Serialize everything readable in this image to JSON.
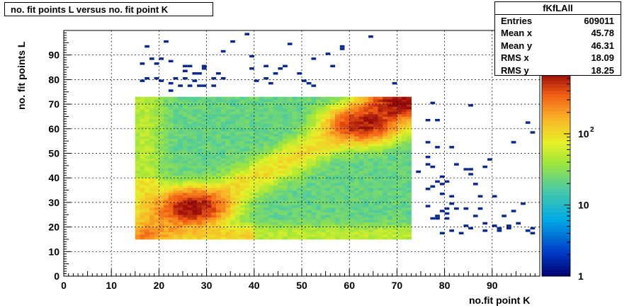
{
  "title": "no. fit points L versus no. fit point K",
  "stats": {
    "name": "fKfLAll",
    "rows": [
      {
        "label": "Entries",
        "value": "609011"
      },
      {
        "label": "Mean x",
        "value": "45.78"
      },
      {
        "label": "Mean y",
        "value": "46.31"
      },
      {
        "label": "RMS x",
        "value": "18.09"
      },
      {
        "label": "RMS y",
        "value": "18.25"
      }
    ]
  },
  "chart_data": {
    "type": "heatmap",
    "xlabel": "no.fit point K",
    "ylabel": "no. fit points L",
    "xlim": [
      0,
      100
    ],
    "ylim": [
      0,
      100
    ],
    "xticks": [
      0,
      10,
      20,
      30,
      40,
      50,
      60,
      70,
      80,
      90
    ],
    "yticks": [
      0,
      10,
      20,
      30,
      40,
      50,
      60,
      70,
      80,
      90
    ],
    "grid": true,
    "zscale": "log",
    "zlim": [
      1,
      700
    ],
    "zticks": [
      {
        "value": 1,
        "label": "1"
      },
      {
        "value": 10,
        "label": "10"
      },
      {
        "value": 100,
        "label": "10",
        "exp": "2"
      }
    ],
    "dense_region": {
      "x": [
        15,
        73
      ],
      "y": [
        15,
        73
      ]
    },
    "peaks": [
      {
        "x": 27,
        "y": 28,
        "value": 600
      },
      {
        "x": 63,
        "y": 62,
        "value": 500
      },
      {
        "x": 71,
        "y": 71,
        "value": 650
      }
    ],
    "sparse_points": [
      [
        17,
        93
      ],
      [
        18,
        88
      ],
      [
        20,
        88
      ],
      [
        21,
        95
      ],
      [
        22,
        87
      ],
      [
        19,
        86
      ],
      [
        16,
        86
      ],
      [
        16,
        79
      ],
      [
        17,
        80
      ],
      [
        19,
        80
      ],
      [
        20,
        79
      ],
      [
        22,
        78
      ],
      [
        22,
        75
      ],
      [
        23,
        80
      ],
      [
        24,
        77
      ],
      [
        25,
        80
      ],
      [
        25,
        85
      ],
      [
        25,
        83
      ],
      [
        27,
        82
      ],
      [
        28,
        82
      ],
      [
        26,
        85
      ],
      [
        29,
        85
      ],
      [
        27,
        79
      ],
      [
        29,
        77
      ],
      [
        29,
        84
      ],
      [
        28,
        77
      ],
      [
        26,
        77
      ],
      [
        31,
        77
      ],
      [
        31,
        80
      ],
      [
        32,
        82
      ],
      [
        33,
        80
      ],
      [
        33,
        91
      ],
      [
        35,
        95
      ],
      [
        38,
        98
      ],
      [
        39,
        89
      ],
      [
        39,
        84
      ],
      [
        40,
        79
      ],
      [
        42,
        80
      ],
      [
        42,
        85
      ],
      [
        43,
        78
      ],
      [
        44,
        82
      ],
      [
        45,
        84
      ],
      [
        46,
        85
      ],
      [
        47,
        94
      ],
      [
        49,
        82
      ],
      [
        50,
        79
      ],
      [
        51,
        78
      ],
      [
        52,
        88
      ],
      [
        52,
        77
      ],
      [
        55,
        90
      ],
      [
        56,
        85
      ],
      [
        58,
        92
      ],
      [
        58,
        93
      ],
      [
        64,
        97
      ],
      [
        69,
        78
      ],
      [
        77,
        70
      ],
      [
        76,
        63
      ],
      [
        78,
        63
      ],
      [
        76,
        48
      ],
      [
        77,
        44
      ],
      [
        76,
        45
      ],
      [
        79,
        40
      ],
      [
        78,
        38
      ],
      [
        80,
        38
      ],
      [
        79,
        33
      ],
      [
        81,
        32
      ],
      [
        81,
        29
      ],
      [
        80,
        25
      ],
      [
        78,
        24
      ],
      [
        80,
        23
      ],
      [
        82,
        27
      ],
      [
        84,
        27
      ],
      [
        84,
        20
      ],
      [
        86,
        24
      ],
      [
        87,
        27
      ],
      [
        88,
        21
      ],
      [
        90,
        20
      ],
      [
        91,
        18
      ],
      [
        91,
        19
      ],
      [
        92,
        24
      ],
      [
        93,
        20
      ],
      [
        94,
        26
      ],
      [
        96,
        29
      ],
      [
        97,
        18
      ],
      [
        98,
        19
      ],
      [
        98,
        17
      ],
      [
        95,
        21
      ],
      [
        93,
        19
      ],
      [
        88,
        18
      ],
      [
        85,
        19
      ],
      [
        83,
        17
      ],
      [
        81,
        18
      ],
      [
        79,
        17
      ],
      [
        78,
        23
      ],
      [
        77,
        23
      ],
      [
        79,
        26
      ],
      [
        76,
        35
      ],
      [
        77,
        36
      ],
      [
        82,
        45
      ],
      [
        85,
        69
      ],
      [
        78,
        52
      ],
      [
        84,
        43
      ],
      [
        85,
        43
      ],
      [
        87,
        32
      ],
      [
        88,
        44
      ],
      [
        89,
        47
      ],
      [
        85,
        41
      ],
      [
        86,
        37
      ],
      [
        90,
        32
      ],
      [
        94,
        54
      ],
      [
        97,
        62
      ],
      [
        98,
        58
      ],
      [
        81,
        52
      ],
      [
        74,
        42
      ],
      [
        76,
        54
      ],
      [
        80,
        27
      ],
      [
        76,
        28
      ],
      [
        79,
        37
      ]
    ]
  }
}
